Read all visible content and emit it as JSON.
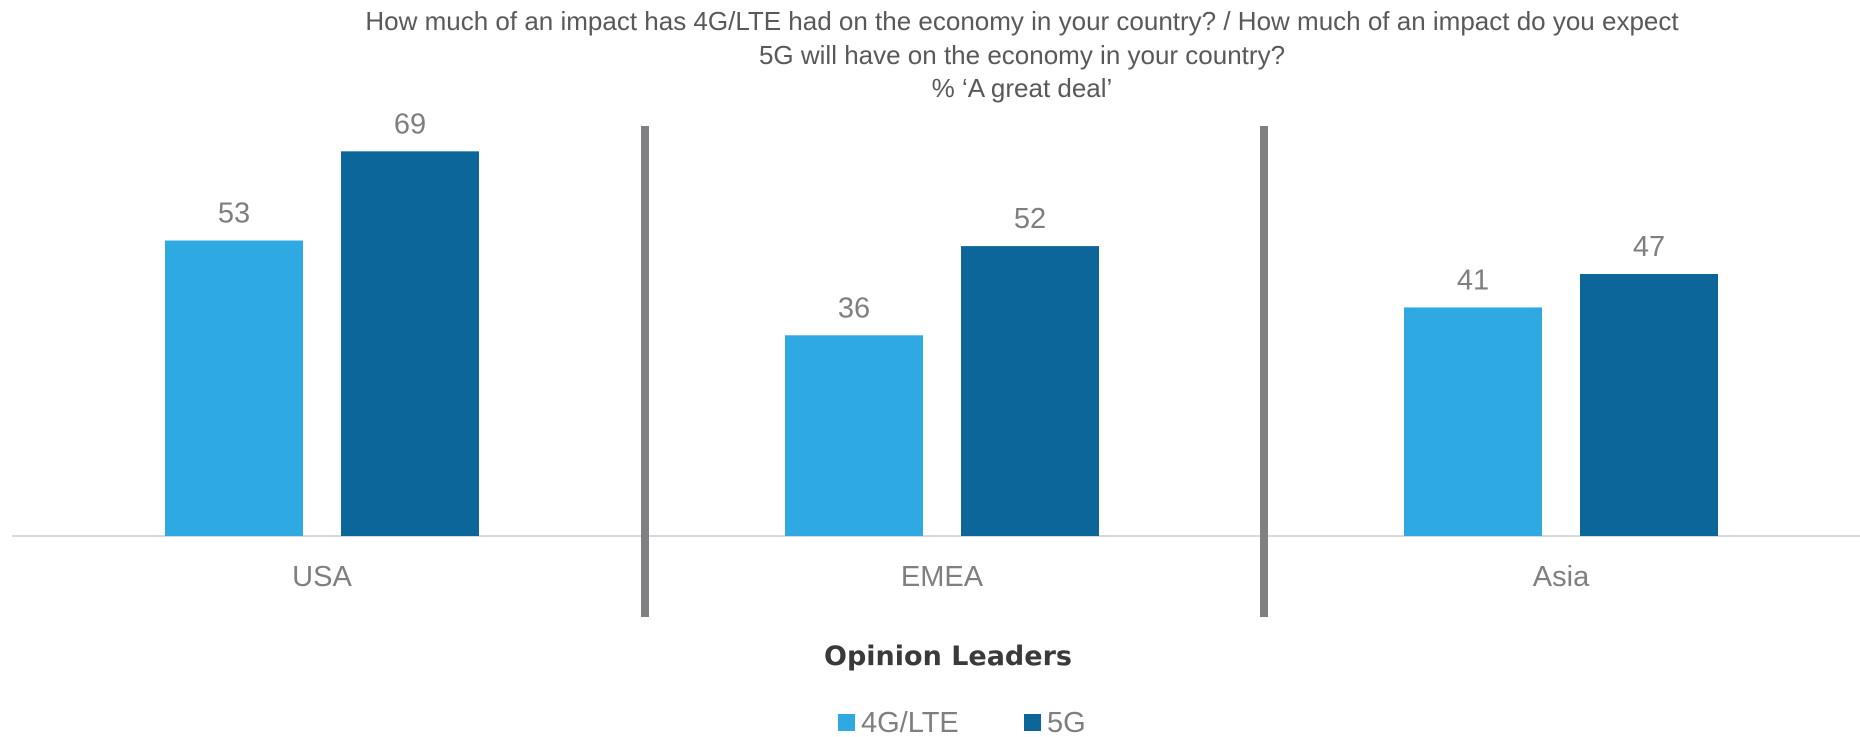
{
  "chart_data": {
    "type": "bar",
    "title_lines": [
      "How much of an impact has 4G/LTE had on the economy in your country? / How much of an impact do you expect",
      "5G will have on the economy in your country?",
      "% ‘A great deal’"
    ],
    "subtitle": "Opinion Leaders",
    "categories": [
      "USA",
      "EMEA",
      "Asia"
    ],
    "series": [
      {
        "name": "4G/LTE",
        "color": "#2ea9e1",
        "values": [
          53,
          36,
          41
        ]
      },
      {
        "name": "5G",
        "color": "#0d6699",
        "values": [
          69,
          52,
          47
        ]
      }
    ],
    "ylim": [
      0,
      80
    ],
    "grid": false,
    "legend_position": "bottom",
    "colors": {
      "baseline": "#d9d9d9",
      "separator": "#7f7f84"
    }
  }
}
